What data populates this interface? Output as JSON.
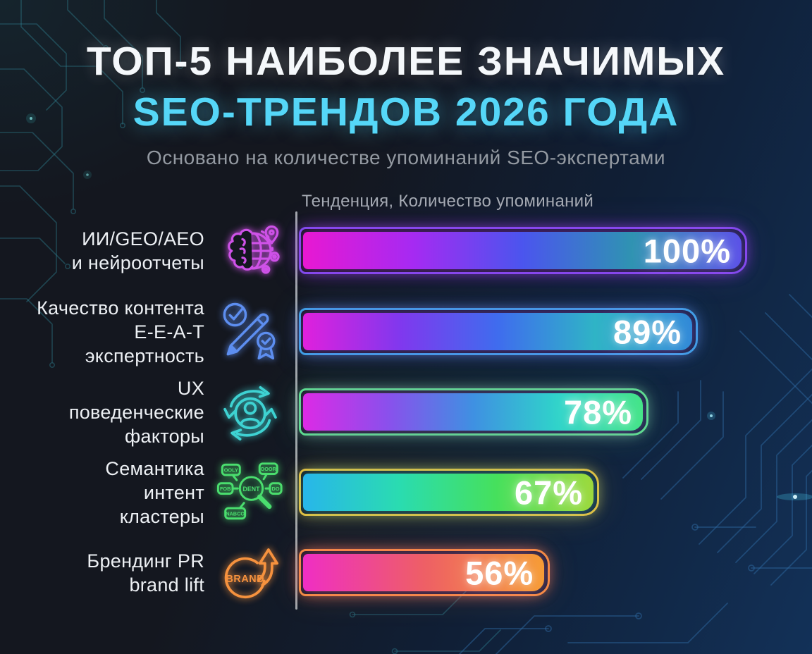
{
  "header": {
    "title_line1": "ТОП-5 НАИБОЛЕЕ ЗНАЧИМЫХ",
    "title_line2": "SEO-ТРЕНДОВ 2026 ГОДА",
    "subtitle": "Основано на количестве упоминаний SEO-экспертами"
  },
  "colors": {
    "background_dark": "#14171f",
    "background_navy": "#123158",
    "title_white": "#f5f8fb",
    "title_cyan": "#55d7f8",
    "subtitle_gray": "#949aa2",
    "axis_gray": "#c7cad0",
    "circuit_teal": "#2f8294",
    "circuit_blue": "#2e679f"
  },
  "chart_data": {
    "type": "bar",
    "orientation": "horizontal",
    "axis_label": "Тенденция, Количество упоминаний",
    "xlim": [
      0,
      100
    ],
    "value_suffix": "%",
    "rows": [
      {
        "label": "ИИ/GEO/AEO\nи нейроотчеты",
        "value": 100,
        "value_label": "100%",
        "icon": "brain-globe-icon",
        "icon_color": "#cf52e8",
        "border_color": "#7e4ff2",
        "gradient": [
          "#e818d2",
          "#a62af2",
          "#4b55ee",
          "#2f93b2",
          "#5a50e8"
        ]
      },
      {
        "label": "Качество контента\nE-E-A-T\nэкспертность",
        "value": 89,
        "value_label": "89%",
        "icon": "check-pen-award-icon",
        "icon_color": "#5d8ef0",
        "border_color": "#37a9e9",
        "gradient": [
          "#e020dd",
          "#8038ee",
          "#3f6cee",
          "#2fb4c6",
          "#2f88d8"
        ]
      },
      {
        "label": "UX\nповеденческие\nфакторы",
        "value": 78,
        "value_label": "78%",
        "icon": "user-cycle-arrows-icon",
        "icon_color": "#3ed2d2",
        "border_color": "#57e98c",
        "gradient": [
          "#dc2ae6",
          "#8a50ec",
          "#3f90e2",
          "#2fd4ca",
          "#43e487"
        ]
      },
      {
        "label": "Семантика\nинтент\nкластеры",
        "value": 67,
        "value_label": "67%",
        "icon": "keyword-cluster-magnifier-icon",
        "icon_color": "#4ade6e",
        "border_color": "#efc13a",
        "icon_tags": [
          "OOLY",
          "OOOR",
          "FOB",
          "DENT",
          "DO",
          "NABCO"
        ],
        "gradient": [
          "#28b6ea",
          "#2adcb0",
          "#46e05c",
          "#9cd93a"
        ]
      },
      {
        "label": "Брендинг PR\nbrand lift",
        "value": 56,
        "value_label": "56%",
        "icon": "brand-lift-icon",
        "icon_color": "#f6923e",
        "border_color": "#f6923e",
        "icon_text": "BRAND",
        "gradient": [
          "#ef2ec4",
          "#ee5f66",
          "#f69b33"
        ]
      }
    ]
  }
}
